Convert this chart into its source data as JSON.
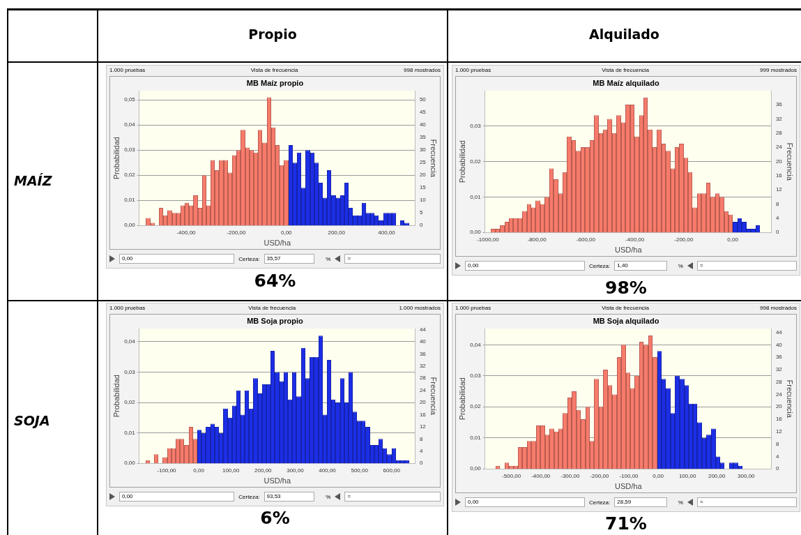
{
  "chart_data": [
    {
      "type": "other",
      "annotations": [
        "Propio",
        "Alquilado",
        "MAÍZ",
        "SOJA"
      ]
    },
    {
      "type": "histogram",
      "title": "MB Maíz propio",
      "subtitle": "Vista de frecuencia",
      "xlabel": "USD/ha",
      "ylabel": "Probabilidad",
      "y2label": "Frecuencia",
      "grid": "y",
      "annotations": [
        "1.000 pruebas",
        "998 mostrados",
        "0,00",
        "Certeza:",
        "35,57",
        "%",
        "=",
        "64%"
      ],
      "bins": [
        -560,
        -543,
        -526,
        -508,
        -491,
        -474,
        -457,
        -440,
        -422,
        -405,
        -388,
        -371,
        -354,
        -336,
        -319,
        -302,
        -285,
        -268,
        -250,
        -233,
        -216,
        -199,
        -182,
        -164,
        -147,
        -130,
        -113,
        -96,
        -78,
        -61,
        -44,
        -27,
        -10,
        8,
        25,
        42,
        59,
        76,
        94,
        111,
        128,
        145,
        162,
        180,
        197,
        214,
        231,
        248,
        266,
        283,
        300,
        317,
        334,
        352,
        369,
        386,
        403,
        420,
        438,
        455,
        472,
        489
      ],
      "series": [
        {
          "axis": "y2",
          "color": "#f77b6b",
          "values": [
            3,
            1,
            0,
            7,
            4,
            6,
            5,
            5,
            8,
            9,
            8,
            12,
            7,
            20,
            8,
            26,
            22,
            26,
            26,
            21,
            28,
            30,
            38,
            31,
            30,
            29,
            38,
            33,
            51,
            39,
            32,
            24,
            26,
            null,
            null,
            null,
            null,
            null,
            null,
            null,
            null,
            null,
            null,
            null,
            null,
            null,
            null,
            null,
            null,
            null,
            null,
            null,
            null,
            null,
            null,
            null,
            null,
            null,
            null,
            null,
            null
          ]
        },
        {
          "axis": "y2",
          "color": "#1c2ee6",
          "values": [
            null,
            null,
            null,
            null,
            null,
            null,
            null,
            null,
            null,
            null,
            null,
            null,
            null,
            null,
            null,
            null,
            null,
            null,
            null,
            null,
            null,
            null,
            null,
            null,
            null,
            null,
            null,
            null,
            null,
            null,
            null,
            null,
            null,
            32,
            25,
            29,
            15,
            30,
            29,
            25,
            17,
            11,
            22,
            12,
            11,
            12,
            17,
            7,
            4,
            4,
            9,
            5,
            5,
            4,
            2,
            5,
            5,
            5,
            0,
            2,
            1
          ]
        }
      ],
      "xlim": [
        -587,
        515
      ],
      "xticks": [
        {
          "value": -400,
          "label": "-400,00"
        },
        {
          "value": -200,
          "label": "-200,00"
        },
        {
          "value": 0,
          "label": "0,00"
        },
        {
          "value": 200,
          "label": "200,00"
        },
        {
          "value": 400,
          "label": "400,00"
        }
      ],
      "ylim": [
        0,
        0.0536
      ],
      "yticks": [
        {
          "value": 0,
          "label": "0,00"
        },
        {
          "value": 0.01,
          "label": "0,01"
        },
        {
          "value": 0.02,
          "label": "0,02"
        },
        {
          "value": 0.03,
          "label": "0,03"
        },
        {
          "value": 0.04,
          "label": "0,04"
        },
        {
          "value": 0.05,
          "label": "0,05"
        }
      ],
      "y2lim": [
        0,
        53.6
      ],
      "y2ticks": [
        0,
        5,
        10,
        15,
        20,
        25,
        30,
        35,
        40,
        45,
        50
      ]
    },
    {
      "type": "histogram",
      "title": "MB Maíz alquilado",
      "subtitle": "Vista de frecuencia",
      "xlabel": "USD/ha",
      "ylabel": "Probabilidad",
      "y2label": "Frecuencia",
      "grid": "y",
      "annotations": [
        "1.000 pruebas",
        "999 mostrados",
        "0,00",
        "Certeza:",
        "1,40",
        "%",
        "=",
        "98%"
      ],
      "bins": [
        -988,
        -970,
        -951,
        -933,
        -915,
        -896,
        -878,
        -860,
        -841,
        -823,
        -805,
        -787,
        -768,
        -750,
        -732,
        -713,
        -695,
        -677,
        -658,
        -640,
        -622,
        -603,
        -585,
        -567,
        -548,
        -530,
        -512,
        -493,
        -475,
        -457,
        -438,
        -420,
        -402,
        -383,
        -365,
        -347,
        -329,
        -310,
        -292,
        -274,
        -255,
        -237,
        -219,
        -200,
        -182,
        -164,
        -145,
        -127,
        -109,
        -90,
        -72,
        -54,
        -35,
        -17,
        1,
        20,
        38,
        56,
        75,
        93,
        111
      ],
      "series": [
        {
          "axis": "y2",
          "color": "#f77b6b",
          "values": [
            1,
            1,
            2,
            3,
            4,
            4,
            4,
            6,
            8,
            7,
            9,
            8,
            10,
            18,
            15,
            11,
            17,
            27,
            26,
            23,
            24,
            24,
            26,
            33,
            28,
            29,
            32,
            28,
            33,
            31,
            36,
            36,
            27,
            33,
            38,
            29,
            24,
            29,
            25,
            23,
            18,
            24,
            25,
            21,
            17,
            7,
            11,
            11,
            14,
            10,
            11,
            10,
            6,
            5,
            null,
            null,
            null,
            null,
            null,
            null
          ]
        },
        {
          "axis": "y2",
          "color": "#1c2ee6",
          "values": [
            null,
            null,
            null,
            null,
            null,
            null,
            null,
            null,
            null,
            null,
            null,
            null,
            null,
            null,
            null,
            null,
            null,
            null,
            null,
            null,
            null,
            null,
            null,
            null,
            null,
            null,
            null,
            null,
            null,
            null,
            null,
            null,
            null,
            null,
            null,
            null,
            null,
            null,
            null,
            null,
            null,
            null,
            null,
            null,
            null,
            null,
            null,
            null,
            null,
            null,
            null,
            null,
            null,
            null,
            3,
            4,
            3,
            1,
            1,
            2
          ]
        }
      ],
      "xlim": [
        -1012,
        159
      ],
      "xticks": [
        {
          "value": -1000,
          "label": "-1000,00"
        },
        {
          "value": -800,
          "label": "-800,00"
        },
        {
          "value": -600,
          "label": "-600,00"
        },
        {
          "value": -400,
          "label": "-400,00"
        },
        {
          "value": -200,
          "label": "-200,00"
        },
        {
          "value": 0,
          "label": "0,00"
        }
      ],
      "ylim": [
        0,
        0.04
      ],
      "yticks": [
        {
          "value": 0,
          "label": "0,00"
        },
        {
          "value": 0.01,
          "label": "0,01"
        },
        {
          "value": 0.02,
          "label": "0,02"
        },
        {
          "value": 0.03,
          "label": "0,03"
        }
      ],
      "y2lim": [
        0,
        39.9
      ],
      "y2ticks": [
        0,
        4,
        8,
        12,
        16,
        20,
        24,
        28,
        32,
        36
      ]
    },
    {
      "type": "histogram",
      "title": "MB Soja propio",
      "subtitle": "Vista de frecuencia",
      "xlabel": "USD/ha",
      "ylabel": "Probabilidad",
      "y2label": "Frecuencia",
      "grid": "y",
      "annotations": [
        "1.000 pruebas",
        "1.000 mostrados",
        "0,00",
        "Certeza:",
        "93,53",
        "%",
        "=",
        "6%"
      ],
      "bins": [
        -166,
        -152,
        -139,
        -125,
        -112,
        -98,
        -85,
        -72,
        -58,
        -45,
        -31,
        -18,
        -4,
        9,
        22,
        36,
        49,
        63,
        76,
        90,
        103,
        116,
        130,
        143,
        157,
        170,
        184,
        197,
        210,
        224,
        237,
        251,
        264,
        278,
        291,
        304,
        318,
        331,
        345,
        358,
        372,
        385,
        398,
        412,
        425,
        439,
        452,
        466,
        479,
        492,
        506,
        519,
        533,
        546,
        560,
        573,
        586,
        600,
        613,
        627,
        640,
        654
      ],
      "series": [
        {
          "axis": "y2",
          "color": "#f77b6b",
          "values": [
            1,
            0,
            3,
            0,
            2,
            5,
            5,
            8,
            8,
            6,
            12,
            8,
            null,
            null,
            null,
            null,
            null,
            null,
            null,
            null,
            null,
            null,
            null,
            null,
            null,
            null,
            null,
            null,
            null,
            null,
            null,
            null,
            null,
            null,
            null,
            null,
            null,
            null,
            null,
            null,
            null,
            null,
            null,
            null,
            null,
            null,
            null,
            null,
            null,
            null,
            null,
            null,
            null,
            null,
            null,
            null,
            null,
            null,
            null,
            null,
            null
          ]
        },
        {
          "axis": "y2",
          "color": "#1c2ee6",
          "values": [
            null,
            null,
            null,
            null,
            null,
            null,
            null,
            null,
            null,
            null,
            null,
            null,
            11,
            10,
            12,
            13,
            12,
            10,
            18,
            15,
            19,
            24,
            16,
            24,
            18,
            28,
            23,
            26,
            26,
            37,
            30,
            27,
            30,
            21,
            30,
            22,
            38,
            28,
            35,
            35,
            42,
            16,
            34,
            21,
            20,
            28,
            20,
            30,
            17,
            14,
            14,
            12,
            6,
            6,
            8,
            5,
            3,
            5,
            1,
            1,
            1
          ]
        }
      ],
      "xlim": [
        -185,
        674
      ],
      "xticks": [
        {
          "value": -100,
          "label": "-100,00"
        },
        {
          "value": 0,
          "label": "0,00"
        },
        {
          "value": 100,
          "label": "100,00"
        },
        {
          "value": 200,
          "label": "200,00"
        },
        {
          "value": 300,
          "label": "300,00"
        },
        {
          "value": 400,
          "label": "400,00"
        },
        {
          "value": 500,
          "label": "500,00"
        },
        {
          "value": 600,
          "label": "600,00"
        }
      ],
      "ylim": [
        0,
        0.0443
      ],
      "yticks": [
        {
          "value": 0,
          "label": "0,00"
        },
        {
          "value": 0.01,
          "label": "0,01"
        },
        {
          "value": 0.02,
          "label": "0,02"
        },
        {
          "value": 0.03,
          "label": "0,03"
        },
        {
          "value": 0.04,
          "label": "0,04"
        }
      ],
      "y2lim": [
        0,
        44.3
      ],
      "y2ticks": [
        0,
        4,
        8,
        12,
        16,
        20,
        24,
        28,
        32,
        36,
        40,
        44
      ]
    },
    {
      "type": "histogram",
      "title": "MB Soja alquilado",
      "subtitle": "Vista de frecuencia",
      "xlabel": "USD/ha",
      "ylabel": "Probabilidad",
      "y2label": "Frecuencia",
      "grid": "y",
      "annotations": [
        "1.000 pruebas",
        "998 mostrados",
        "0,00",
        "Certeza:",
        "28,59",
        "%",
        "=",
        "71%"
      ],
      "bins": [
        -554,
        -539,
        -524,
        -508,
        -493,
        -478,
        -463,
        -447,
        -432,
        -417,
        -401,
        -386,
        -371,
        -355,
        -340,
        -325,
        -309,
        -294,
        -279,
        -264,
        -248,
        -233,
        -218,
        -202,
        -187,
        -172,
        -156,
        -141,
        -126,
        -110,
        -95,
        -80,
        -64,
        -49,
        -34,
        -19,
        -3,
        12,
        27,
        43,
        58,
        73,
        89,
        104,
        119,
        134,
        150,
        165,
        180,
        196,
        211,
        226,
        242,
        257,
        272,
        288
      ],
      "series": [
        {
          "axis": "y2",
          "color": "#f77b6b",
          "values": [
            1,
            0,
            2,
            1,
            1,
            7,
            7,
            9,
            9,
            14,
            14,
            11,
            13,
            12,
            13,
            18,
            23,
            25,
            19,
            16,
            20,
            9,
            29,
            20,
            32,
            27,
            24,
            36,
            40,
            31,
            26,
            30,
            41,
            40,
            43,
            36,
            null,
            null,
            null,
            null,
            null,
            null,
            null,
            null,
            null,
            null,
            null,
            null,
            null,
            null,
            null,
            null,
            null,
            null,
            null
          ]
        },
        {
          "axis": "y2",
          "color": "#1c2ee6",
          "values": [
            null,
            null,
            null,
            null,
            null,
            null,
            null,
            null,
            null,
            null,
            null,
            null,
            null,
            null,
            null,
            null,
            null,
            null,
            null,
            null,
            null,
            null,
            null,
            null,
            null,
            null,
            null,
            null,
            null,
            null,
            null,
            null,
            null,
            null,
            null,
            null,
            38,
            29,
            26,
            18,
            30,
            29,
            27,
            21,
            21,
            15,
            10,
            11,
            13,
            4,
            2,
            0,
            2,
            2,
            1
          ]
        }
      ],
      "xlim": [
        -590,
        387
      ],
      "xticks": [
        {
          "value": -500,
          "label": "-500,00"
        },
        {
          "value": -400,
          "label": "-400,00"
        },
        {
          "value": -300,
          "label": "-300,00"
        },
        {
          "value": -200,
          "label": "-200,00"
        },
        {
          "value": -100,
          "label": "-100,00"
        },
        {
          "value": 0,
          "label": "0,00"
        },
        {
          "value": 100,
          "label": "100,00"
        },
        {
          "value": 200,
          "label": "200,00"
        },
        {
          "value": 300,
          "label": "300,00"
        }
      ],
      "ylim": [
        0,
        0.0452
      ],
      "yticks": [
        {
          "value": 0,
          "label": "0,00"
        },
        {
          "value": 0.01,
          "label": "0,01"
        },
        {
          "value": 0.02,
          "label": "0,02"
        },
        {
          "value": 0.03,
          "label": "0,03"
        },
        {
          "value": 0.04,
          "label": "0,04"
        }
      ],
      "y2lim": [
        0,
        45.2
      ],
      "y2ticks": [
        0,
        4,
        8,
        12,
        16,
        20,
        24,
        28,
        32,
        36,
        40,
        44
      ]
    }
  ]
}
